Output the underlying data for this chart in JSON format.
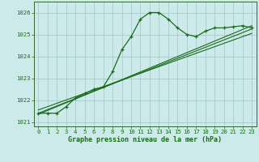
{
  "title": "Graphe pression niveau de la mer (hPa)",
  "background_color": "#cceaea",
  "grid_color": "#aacccc",
  "line_color": "#1a6b1a",
  "spine_color": "#336633",
  "xlim": [
    -0.5,
    23.5
  ],
  "ylim": [
    1020.8,
    1026.5
  ],
  "yticks": [
    1021,
    1022,
    1023,
    1024,
    1025,
    1026
  ],
  "xticks": [
    0,
    1,
    2,
    3,
    4,
    5,
    6,
    7,
    8,
    9,
    10,
    11,
    12,
    13,
    14,
    15,
    16,
    17,
    18,
    19,
    20,
    21,
    22,
    23
  ],
  "series1_x": [
    0,
    1,
    2,
    3,
    4,
    5,
    6,
    7,
    8,
    9,
    10,
    11,
    12,
    13,
    14,
    15,
    16,
    17,
    18,
    19,
    20,
    21,
    22,
    23
  ],
  "series1_y": [
    1021.4,
    1021.4,
    1021.4,
    1021.7,
    1022.1,
    1022.3,
    1022.5,
    1022.6,
    1023.3,
    1024.3,
    1024.9,
    1025.7,
    1026.0,
    1026.0,
    1025.7,
    1025.3,
    1025.0,
    1024.9,
    1025.15,
    1025.3,
    1025.3,
    1025.35,
    1025.4,
    1025.3
  ],
  "series2_x": [
    0,
    23
  ],
  "series2_y": [
    1021.4,
    1025.25
  ],
  "series3_x": [
    0,
    23
  ],
  "series3_y": [
    1021.55,
    1025.05
  ],
  "series4_x": [
    0,
    23
  ],
  "series4_y": [
    1021.35,
    1025.4
  ],
  "title_fontsize": 6.0,
  "tick_fontsize": 5.2
}
